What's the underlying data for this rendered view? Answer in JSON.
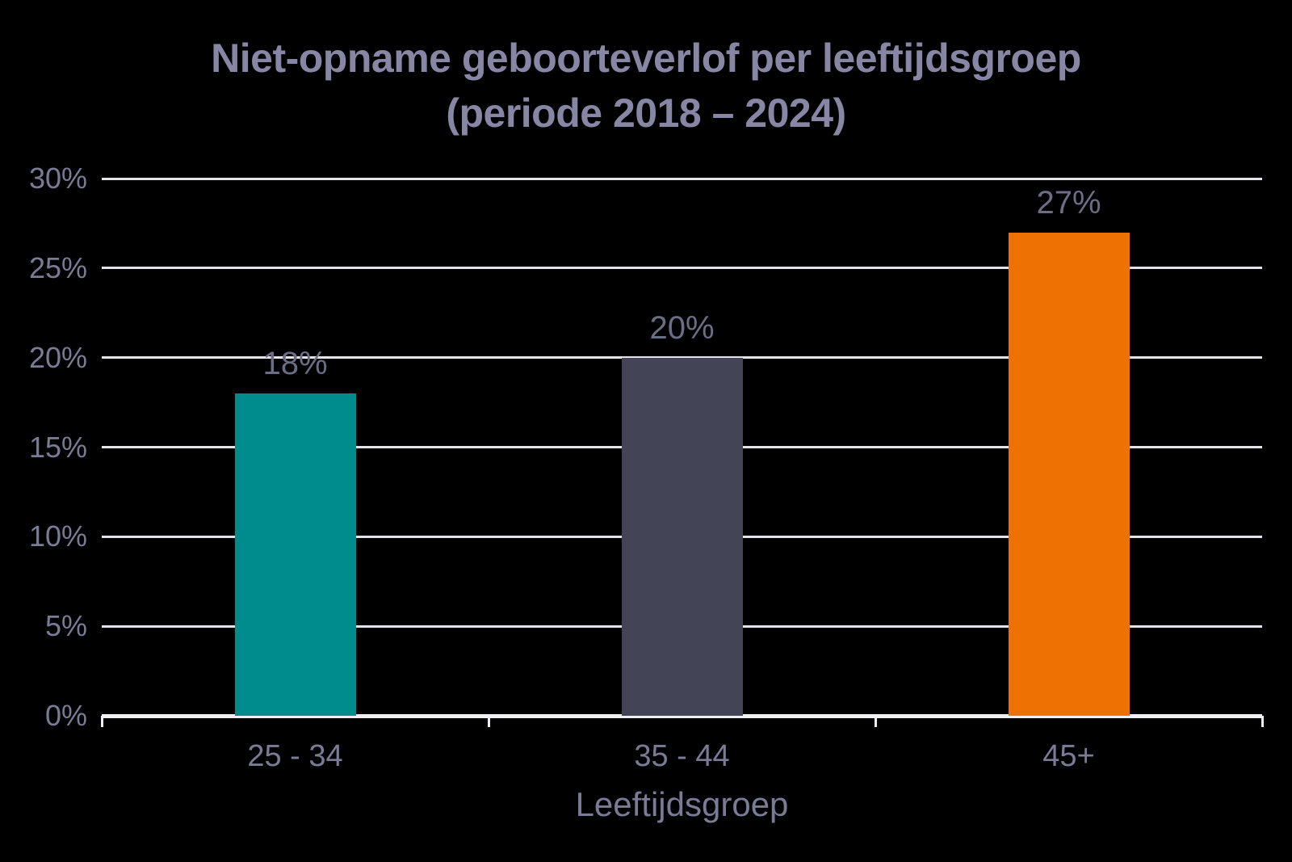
{
  "title": {
    "line1": "Niet-opname geboorteverlof per leeftijdsgroep",
    "line2": "(periode 2018 – 2024)"
  },
  "chart_data": {
    "type": "bar",
    "title": "Niet-opname geboorteverlof per leeftijdsgroep (periode 2018 – 2024)",
    "title_lines": [
      "Niet-opname geboorteverlof per leeftijdsgroep",
      "(periode 2018 – 2024)"
    ],
    "categories": [
      "25 - 34",
      "35 - 44",
      "45+"
    ],
    "values": [
      18,
      20,
      27
    ],
    "value_labels": [
      "18%",
      "20%",
      "27%"
    ],
    "bar_colors": [
      "#008B8C",
      "#434456",
      "#ED7203"
    ],
    "xlabel": "Leeftijdsgroep",
    "ylabel": "",
    "ylim": [
      0,
      30
    ],
    "yticks": [
      0,
      5,
      10,
      15,
      20,
      25,
      30
    ],
    "ytick_labels": [
      "0%",
      "5%",
      "10%",
      "15%",
      "20%",
      "25%",
      "30%"
    ],
    "grid": true,
    "legend": "none"
  },
  "colors": {
    "background": "#000000",
    "title_text": "#8787A5",
    "tick_text": "#7A7B96",
    "data_label_text": "#6C6D86",
    "gridline": "#E3E3E9",
    "axis_line": "#EFEFF3"
  }
}
